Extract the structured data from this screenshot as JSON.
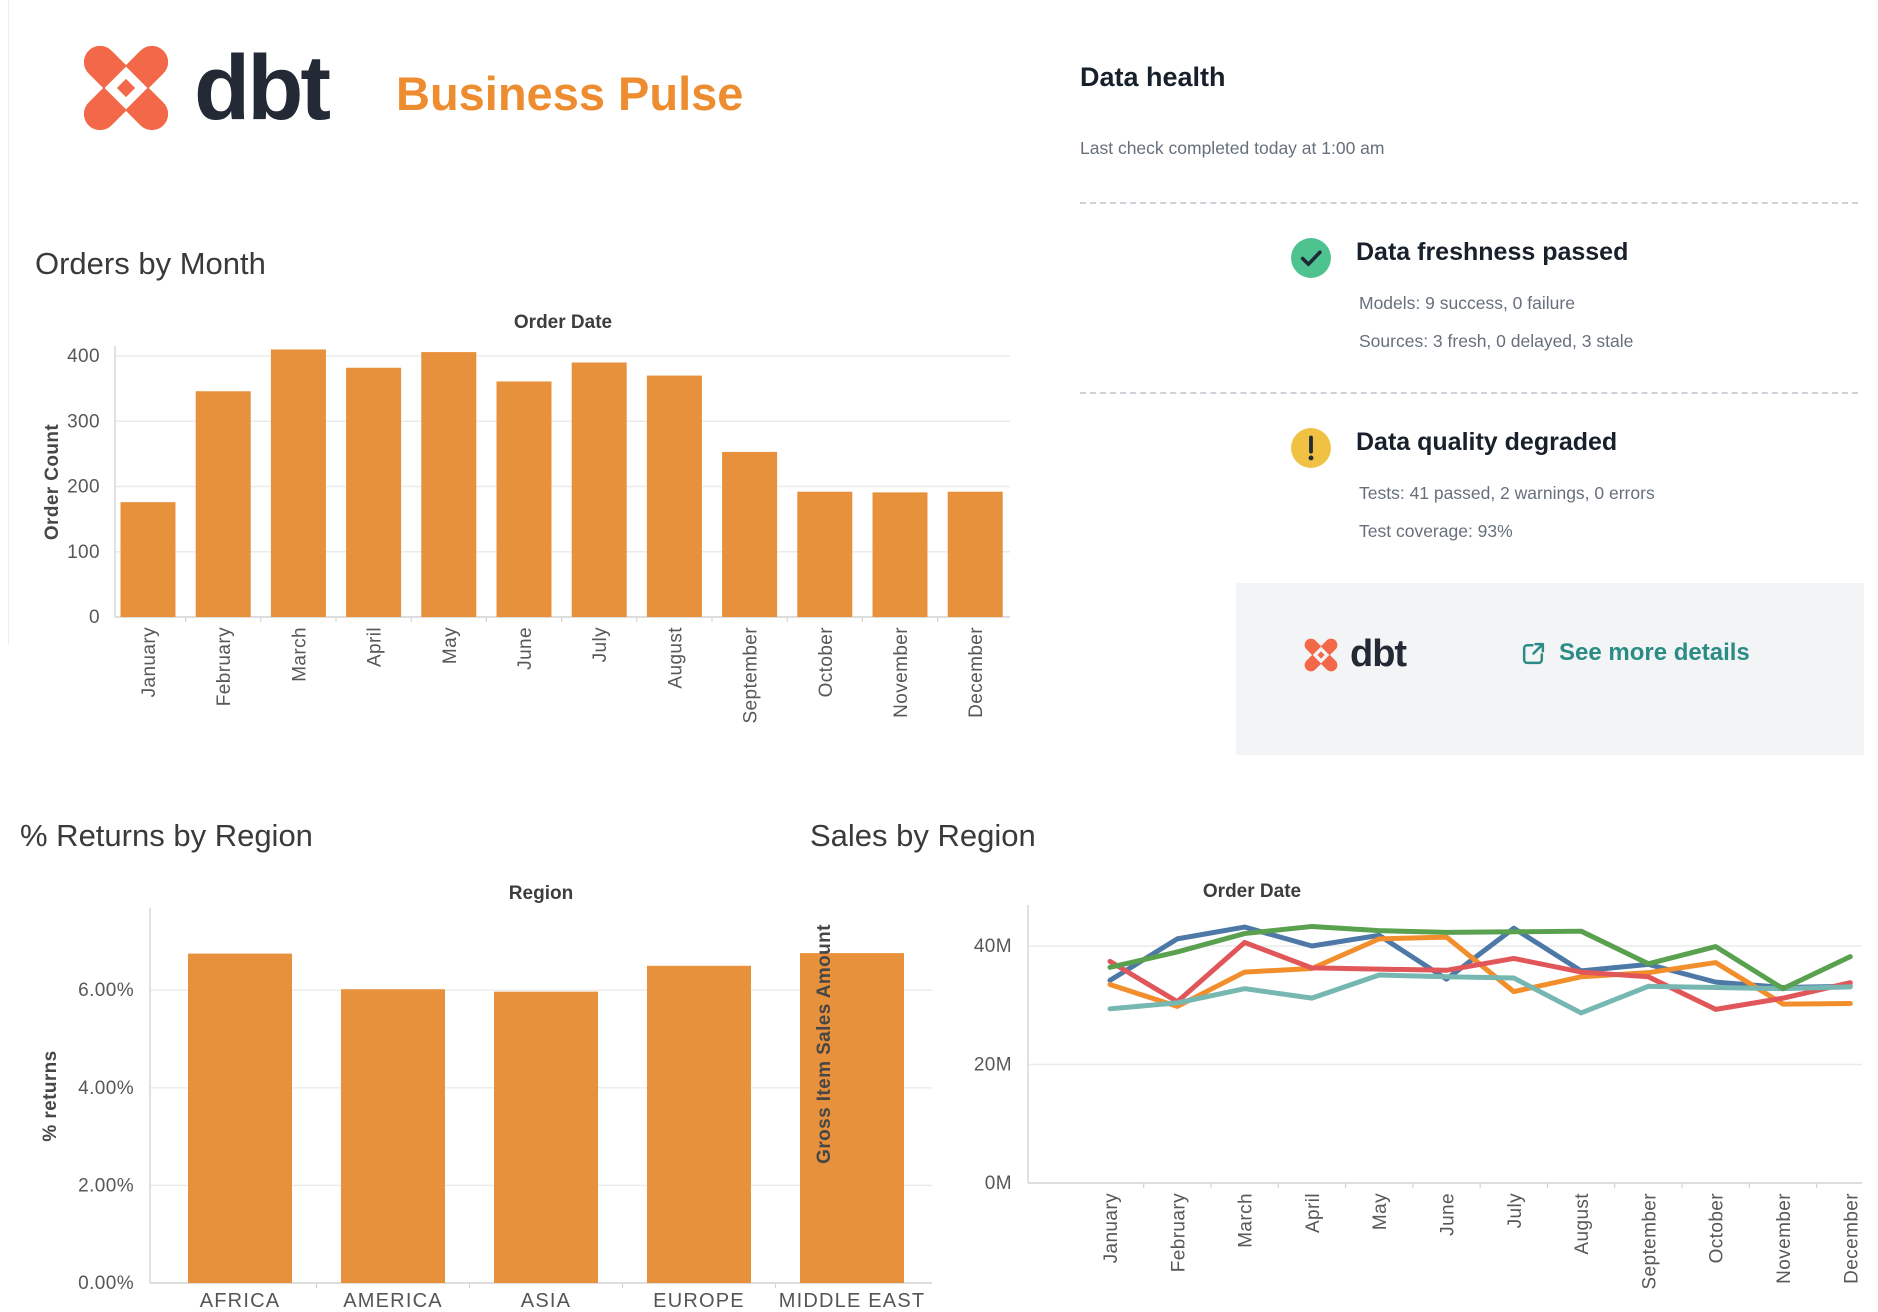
{
  "header": {
    "brand": "dbt",
    "title": "Business Pulse"
  },
  "data_health": {
    "title": "Data health",
    "subtitle": "Last check completed today at 1:00 am",
    "freshness": {
      "title": "Data freshness passed",
      "models_line": "Models: 9 success, 0 failure",
      "sources_line": "Sources: 3 fresh, 0 delayed, 3 stale"
    },
    "quality": {
      "title": "Data quality degraded",
      "tests_line": "Tests: 41 passed, 2 warnings, 0 errors",
      "coverage_line": "Test coverage: 93%"
    },
    "footer": {
      "brand": "dbt",
      "link_label": "See more details"
    }
  },
  "colors": {
    "brand_coral": "#F26849",
    "brand_navy": "#232A36",
    "title_orange": "#ED8D30",
    "bar_orange": "#E8913C",
    "link_teal": "#2A8C85",
    "success_green": "#4EC28F",
    "warning_yellow": "#F0C142"
  },
  "chart_data": [
    {
      "id": "orders_by_month",
      "type": "bar",
      "title": "Orders by Month",
      "pane_title": "Order Date",
      "ylabel": "Order Count",
      "categories": [
        "January",
        "February",
        "March",
        "April",
        "May",
        "June",
        "July",
        "August",
        "September",
        "October",
        "November",
        "December"
      ],
      "values": [
        176,
        346,
        410,
        382,
        406,
        361,
        390,
        370,
        253,
        192,
        191,
        192
      ],
      "yticks": [
        {
          "v": 0,
          "label": "0"
        },
        {
          "v": 100,
          "label": "100"
        },
        {
          "v": 200,
          "label": "200"
        },
        {
          "v": 300,
          "label": "300"
        },
        {
          "v": 400,
          "label": "400"
        }
      ],
      "ylim": [
        0,
        415
      ],
      "grid": true,
      "bar_color": "#E8913C"
    },
    {
      "id": "returns_by_region",
      "type": "bar",
      "title": "% Returns by Region",
      "pane_title": "Region",
      "ylabel": "% returns",
      "categories": [
        "AFRICA",
        "AMERICA",
        "ASIA",
        "EUROPE",
        "MIDDLE EAST"
      ],
      "values": [
        6.75,
        6.02,
        5.97,
        6.5,
        6.76
      ],
      "yticks": [
        {
          "v": 0,
          "label": "0.00%"
        },
        {
          "v": 2,
          "label": "2.00%"
        },
        {
          "v": 4,
          "label": "4.00%"
        },
        {
          "v": 6,
          "label": "6.00%"
        }
      ],
      "ylim": [
        0,
        7.7
      ],
      "grid": true,
      "bar_color": "#E8913C"
    },
    {
      "id": "sales_by_region",
      "type": "line",
      "title": "Sales by Region",
      "pane_title": "Order Date",
      "ylabel": "Gross Item Sales Amount",
      "categories": [
        "January",
        "February",
        "March",
        "April",
        "May",
        "June",
        "July",
        "August",
        "September",
        "October",
        "November",
        "December"
      ],
      "yticks": [
        {
          "v": 0,
          "label": "0M"
        },
        {
          "v": 20,
          "label": "20M"
        },
        {
          "v": 40,
          "label": "40M"
        }
      ],
      "ylim": [
        0,
        47
      ],
      "grid": true,
      "legend": "none",
      "series": [
        {
          "name": "series-blue",
          "color": "#4E79A7",
          "values": [
            34.2,
            41.2,
            43.2,
            40.0,
            41.8,
            34.4,
            43.0,
            35.8,
            36.9,
            33.9,
            33.0,
            33.2
          ]
        },
        {
          "name": "series-orange",
          "color": "#F28E2B",
          "values": [
            33.5,
            29.8,
            35.6,
            36.2,
            41.2,
            41.5,
            32.3,
            34.8,
            35.5,
            37.2,
            30.2,
            30.3
          ]
        },
        {
          "name": "series-red",
          "color": "#E15759",
          "values": [
            37.4,
            30.6,
            40.6,
            36.3,
            36.1,
            35.9,
            37.9,
            35.6,
            34.8,
            29.3,
            31.2,
            33.8
          ]
        },
        {
          "name": "series-teal",
          "color": "#76B7B2",
          "values": [
            29.4,
            30.4,
            32.8,
            31.2,
            35.1,
            34.8,
            34.6,
            28.7,
            33.2,
            33.0,
            32.8,
            33.1
          ]
        },
        {
          "name": "series-green",
          "color": "#59A14F",
          "values": [
            36.4,
            39.0,
            42.1,
            43.3,
            42.6,
            42.3,
            42.4,
            42.5,
            37.0,
            39.9,
            32.8,
            38.2
          ]
        }
      ]
    }
  ]
}
